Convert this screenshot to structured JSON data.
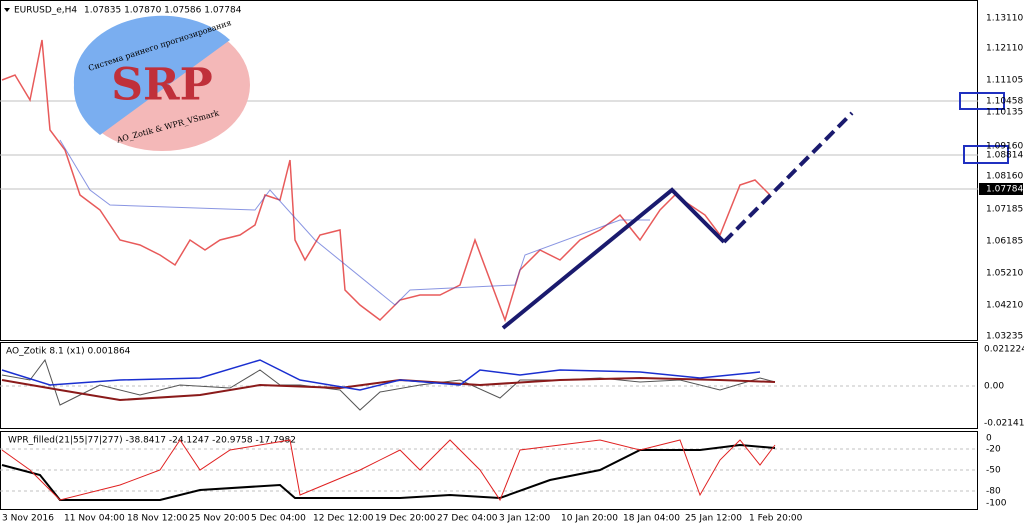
{
  "header": {
    "symbol": "EURUSD_e,H4",
    "quote": "1.07835 1.07870 1.07586 1.07784"
  },
  "logo": {
    "title": "SRP",
    "arc_text": "Система раннего прогнозирования",
    "caption": "AO_Zotik & WPR_VSmark"
  },
  "price_axis": {
    "labels": [
      "1.13110",
      "1.12110",
      "1.11105",
      "1.10135",
      "1.09160",
      "1.08160",
      "1.07185",
      "1.06185",
      "1.05210",
      "1.04210",
      "1.03235"
    ],
    "current": "1.07784",
    "boxed": [
      "1.10458",
      "1.08814"
    ]
  },
  "ao_panel": {
    "label": "AO_Zotik 8.1 (x1) 0.001864",
    "axis": [
      "0.021224",
      "0.00",
      "-0.021413"
    ]
  },
  "wpr_panel": {
    "label": "WPR_filled(21|55|77|277) -38.8417 -24.1247 -20.9758 -17.7982",
    "axis": [
      "0",
      "-20",
      "-50",
      "-80",
      "-100"
    ]
  },
  "time_axis": [
    "3 Nov 2016",
    "11 Nov 04:00",
    "18 Nov 12:00",
    "25 Nov 20:00",
    "5 Dec 04:00",
    "12 Dec 12:00",
    "19 Dec 20:00",
    "27 Dec 04:00",
    "3 Jan 12:00",
    "10 Jan 20:00",
    "18 Jan 04:00",
    "25 Jan 12:00",
    "1 Feb 20:00"
  ]
}
